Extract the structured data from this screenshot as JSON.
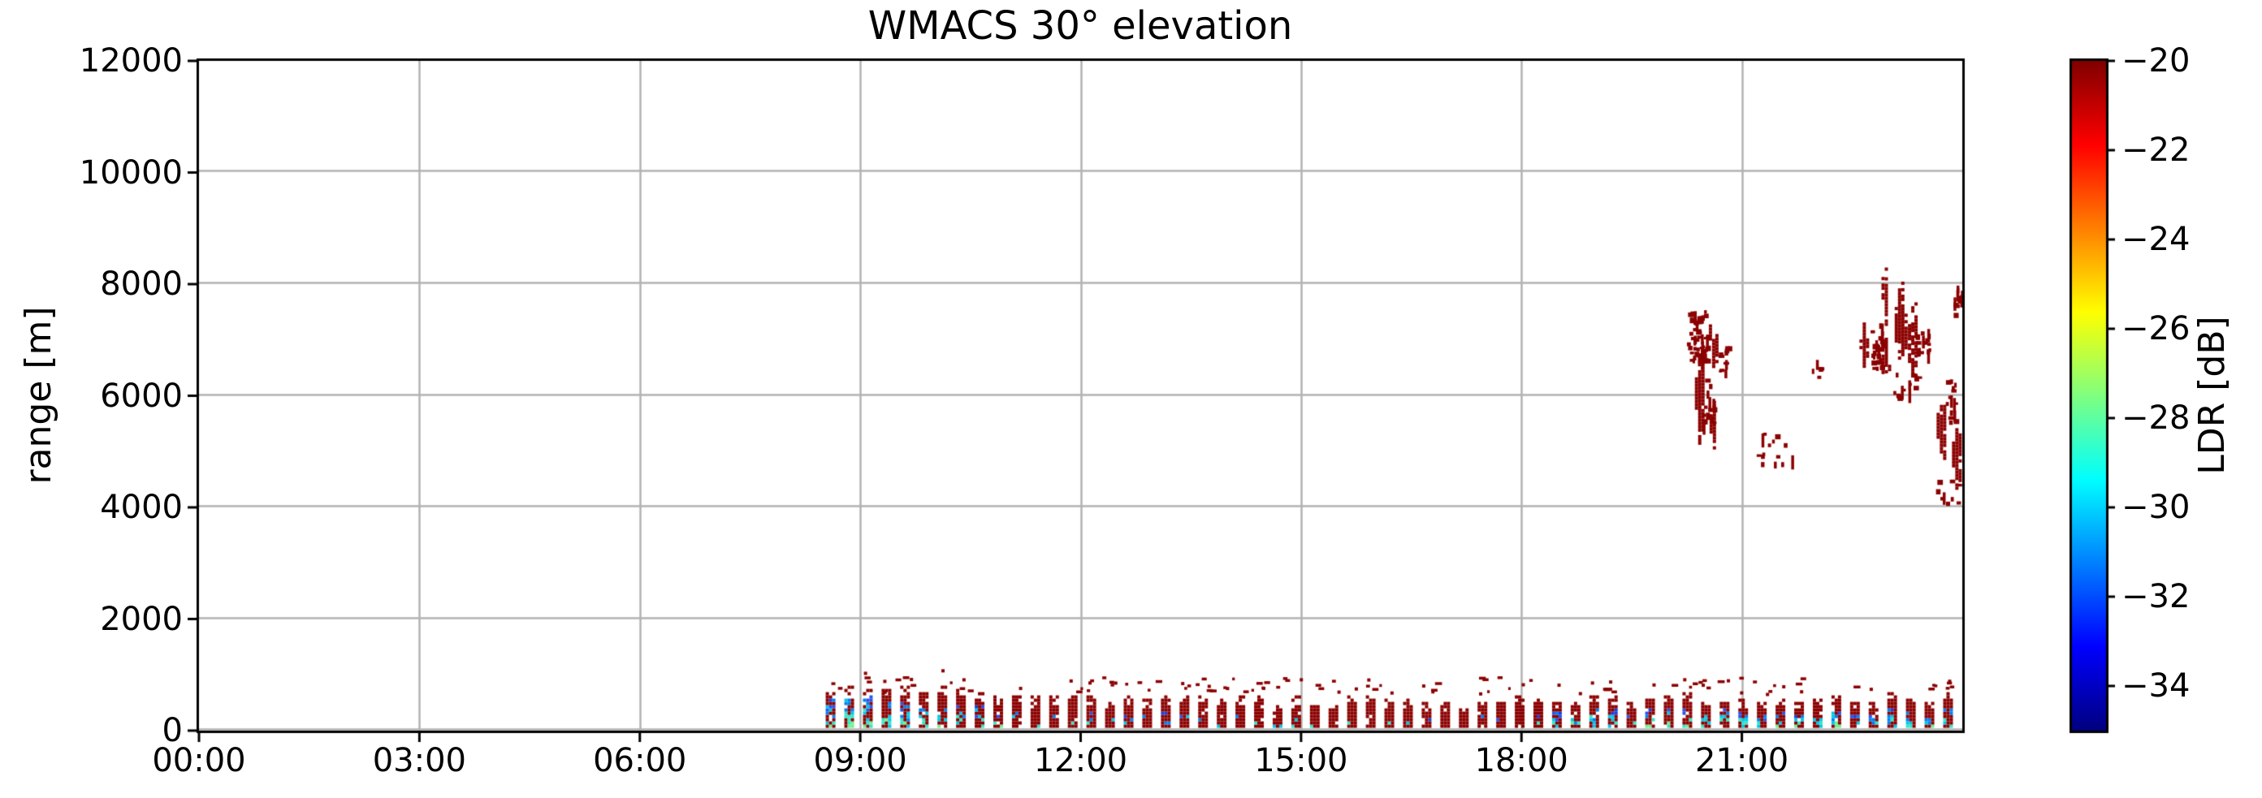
{
  "chart_data": {
    "type": "heatmap",
    "title": "WMACS 30° elevation",
    "ylabel": "range [m]",
    "xlabel": "",
    "grid": true,
    "xlim_hours": [
      0,
      24
    ],
    "ylim_m": [
      0,
      12000
    ],
    "xticks": [
      {
        "hour": 0,
        "label": "00:00"
      },
      {
        "hour": 3,
        "label": "03:00"
      },
      {
        "hour": 6,
        "label": "06:00"
      },
      {
        "hour": 9,
        "label": "09:00"
      },
      {
        "hour": 12,
        "label": "12:00"
      },
      {
        "hour": 15,
        "label": "15:00"
      },
      {
        "hour": 18,
        "label": "18:00"
      },
      {
        "hour": 21,
        "label": "21:00"
      }
    ],
    "yticks": [
      {
        "v": 0,
        "label": "0"
      },
      {
        "v": 2000,
        "label": "2000"
      },
      {
        "v": 4000,
        "label": "4000"
      },
      {
        "v": 6000,
        "label": "6000"
      },
      {
        "v": 8000,
        "label": "8000"
      },
      {
        "v": 10000,
        "label": "10000"
      },
      {
        "v": 12000,
        "label": "12000"
      }
    ],
    "colorbar": {
      "label": "LDR [dB]",
      "vmin": -35,
      "vmax": -20,
      "ticks": [
        {
          "v": -20,
          "label": "−20"
        },
        {
          "v": -22,
          "label": "−22"
        },
        {
          "v": -24,
          "label": "−24"
        },
        {
          "v": -26,
          "label": "−26"
        },
        {
          "v": -28,
          "label": "−28"
        },
        {
          "v": -30,
          "label": "−30"
        },
        {
          "v": -32,
          "label": "−32"
        },
        {
          "v": -34,
          "label": "−34"
        }
      ],
      "colormap": "jet",
      "gradient_stops": [
        {
          "frac": 0.0,
          "color": "#000080"
        },
        {
          "frac": 0.125,
          "color": "#0000FF"
        },
        {
          "frac": 0.375,
          "color": "#00FFFF"
        },
        {
          "frac": 0.625,
          "color": "#FFFF00"
        },
        {
          "frac": 0.875,
          "color": "#FF0000"
        },
        {
          "frac": 1.0,
          "color": "#800000"
        }
      ]
    },
    "colors": {
      "echo_dark_red": "#8B0000",
      "grid": "#b3b3b3",
      "spine": "#000000",
      "bar_blue_palette": [
        "#1E3CD8",
        "#2B50E8",
        "#0080F0",
        "#00C8E8",
        "#30E8C8",
        "#74F08C"
      ],
      "bar_warm_palette": [
        "#F09000",
        "#E8E000",
        "#FF3000"
      ]
    },
    "texture_seed": 42,
    "surface_layer": {
      "t_start": 8.53,
      "t_end": 23.98,
      "scan_period_h": 0.2535,
      "bar_width_h": 0.132,
      "base_m": 50,
      "segments": [
        {
          "t0": 8.53,
          "t1": 9.25,
          "top_m": 720,
          "blue": 0.58,
          "bluezone": 0.85
        },
        {
          "t0": 9.25,
          "t1": 10.6,
          "top_m": 760,
          "blue": 0.4,
          "bluezone": 0.65
        },
        {
          "t0": 10.6,
          "t1": 13.5,
          "top_m": 650,
          "blue": 0.16,
          "bluezone": 0.55
        },
        {
          "t0": 13.5,
          "t1": 18.2,
          "top_m": 580,
          "blue": 0.1,
          "bluezone": 0.5
        },
        {
          "t0": 18.2,
          "t1": 21.0,
          "top_m": 600,
          "blue": 0.42,
          "bluezone": 0.62
        },
        {
          "t0": 21.0,
          "t1": 24.0,
          "top_m": 630,
          "blue": 0.46,
          "bluezone": 0.62
        }
      ],
      "speckle_row": {
        "t0": 8.6,
        "t1": 24.0,
        "h0": 700,
        "h1": 980
      }
    },
    "elevated_echoes": {
      "ldr_db": -20,
      "streaks": [
        {
          "t0": 20.36,
          "t1": 20.48,
          "h0": 5150,
          "h1": 6700
        },
        {
          "t0": 20.56,
          "t1": 20.64,
          "h0": 5050,
          "h1": 5900
        },
        {
          "t0": 20.55,
          "t1": 20.67,
          "h0": 6600,
          "h1": 7250
        },
        {
          "t0": 22.6,
          "t1": 22.69,
          "h0": 6350,
          "h1": 7300
        },
        {
          "t0": 22.9,
          "t1": 22.99,
          "h0": 6300,
          "h1": 6900
        },
        {
          "t0": 22.9,
          "t1": 22.98,
          "h0": 7250,
          "h1": 8350
        },
        {
          "t0": 23.08,
          "t1": 23.22,
          "h0": 6650,
          "h1": 7980
        },
        {
          "t0": 23.26,
          "t1": 23.39,
          "h0": 6400,
          "h1": 7750
        },
        {
          "t0": 23.65,
          "t1": 23.77,
          "h0": 5000,
          "h1": 5950
        },
        {
          "t0": 23.86,
          "t1": 23.99,
          "h0": 4450,
          "h1": 5550
        }
      ],
      "speckle_clouds": [
        {
          "t0": 20.25,
          "t1": 20.52,
          "h0": 6650,
          "h1": 7550,
          "n": 60
        },
        {
          "t0": 20.68,
          "t1": 20.82,
          "h0": 6450,
          "h1": 6900,
          "n": 12
        },
        {
          "t0": 20.45,
          "t1": 20.62,
          "h0": 5500,
          "h1": 6350,
          "n": 18
        },
        {
          "t0": 21.15,
          "t1": 21.7,
          "h0": 4700,
          "h1": 5350,
          "n": 14
        },
        {
          "t0": 21.9,
          "t1": 22.05,
          "h0": 6350,
          "h1": 6650,
          "n": 5
        },
        {
          "t0": 22.74,
          "t1": 22.9,
          "h0": 6500,
          "h1": 7300,
          "n": 26
        },
        {
          "t0": 23.35,
          "t1": 23.55,
          "h0": 6800,
          "h1": 7200,
          "n": 18
        },
        {
          "t0": 23.05,
          "t1": 23.45,
          "h0": 5950,
          "h1": 6450,
          "n": 14
        },
        {
          "t0": 23.75,
          "t1": 23.9,
          "h0": 5500,
          "h1": 6300,
          "n": 16
        },
        {
          "t0": 23.88,
          "t1": 24.0,
          "h0": 7450,
          "h1": 7980,
          "n": 16
        },
        {
          "t0": 23.6,
          "t1": 23.98,
          "h0": 4100,
          "h1": 4500,
          "n": 10
        }
      ]
    }
  }
}
